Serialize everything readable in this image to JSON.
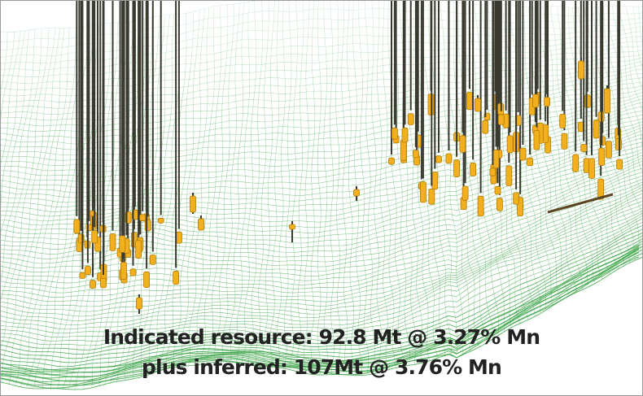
{
  "image": {
    "subject": "3D wireframe terrain mesh with drill hole intersections",
    "mesh_color": "#2e9e3a",
    "drill_color": "#f2b01e",
    "drill_trace_color": "#3a3a30",
    "background_color": "#ffffff"
  },
  "caption": {
    "line1": "Indicated resource: 92.8 Mt @ 3.27% Mn",
    "line2": "plus inferred: 107Mt @ 3.76% Mn"
  }
}
